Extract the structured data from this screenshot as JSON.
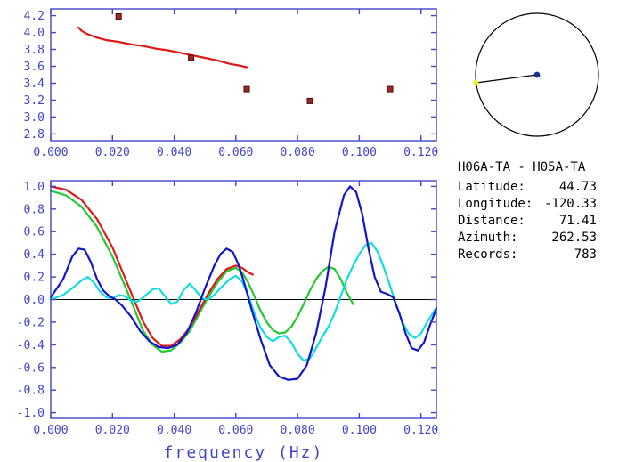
{
  "colors": {
    "axis": "#4343cc",
    "zero_line": "#000000",
    "red_curve": "#e01818",
    "blue_curve": "#1414cc",
    "green_curve": "#22c832",
    "cyan_curve": "#10dede",
    "marker": "#a02820",
    "marker_edge": "#4a0808",
    "circle_outline": "#000000",
    "center_dot": "#20308e",
    "end_dot": "#ecec20",
    "info_text": "#000000"
  },
  "station_info": {
    "title": "H06A-TA - H05A-TA",
    "fields": [
      {
        "label": "Latitude:",
        "value": "44.73"
      },
      {
        "label": "Longitude:",
        "value": "-120.33"
      },
      {
        "label": "Distance:",
        "value": "71.41"
      },
      {
        "label": "Azimuth:",
        "value": "262.53"
      },
      {
        "label": "Records:",
        "value": "783"
      }
    ]
  },
  "azimuth_plot": {
    "azimuth_deg": 262.53
  },
  "chart_data": [
    {
      "type": "line",
      "title": "",
      "xlabel": "",
      "ylabel": "",
      "xlim": [
        0,
        0.125
      ],
      "ylim": [
        2.72,
        4.28
      ],
      "grid": false,
      "legend": "none",
      "zero_line": false,
      "xticks": [
        {
          "v": 0.0,
          "label": "0.000"
        },
        {
          "v": 0.02,
          "label": "0.020"
        },
        {
          "v": 0.04,
          "label": "0.040"
        },
        {
          "v": 0.06,
          "label": "0.060"
        },
        {
          "v": 0.08,
          "label": "0.080"
        },
        {
          "v": 0.1,
          "label": "0.100"
        },
        {
          "v": 0.12,
          "label": "0.120"
        }
      ],
      "yticks": [
        {
          "v": 2.8,
          "label": "2.8"
        },
        {
          "v": 3.0,
          "label": "3.0"
        },
        {
          "v": 3.2,
          "label": "3.2"
        },
        {
          "v": 3.4,
          "label": "3.4"
        },
        {
          "v": 3.6,
          "label": "3.6"
        },
        {
          "v": 3.8,
          "label": "3.8"
        },
        {
          "v": 4.0,
          "label": "4.0"
        },
        {
          "v": 4.2,
          "label": "4.2"
        }
      ],
      "series": [
        {
          "name": "phase-velocity",
          "color": "red_curve",
          "points": [
            [
              0.009,
              4.06
            ],
            [
              0.01,
              4.02
            ],
            [
              0.012,
              3.98
            ],
            [
              0.015,
              3.94
            ],
            [
              0.018,
              3.91
            ],
            [
              0.022,
              3.89
            ],
            [
              0.026,
              3.86
            ],
            [
              0.03,
              3.84
            ],
            [
              0.034,
              3.81
            ],
            [
              0.038,
              3.79
            ],
            [
              0.042,
              3.76
            ],
            [
              0.046,
              3.73
            ],
            [
              0.05,
              3.7
            ],
            [
              0.054,
              3.67
            ],
            [
              0.058,
              3.63
            ],
            [
              0.061,
              3.61
            ],
            [
              0.0635,
              3.59
            ]
          ]
        }
      ],
      "markers": {
        "name": "picked-dispersion-points",
        "points": [
          [
            0.022,
            4.19
          ],
          [
            0.0455,
            3.7
          ],
          [
            0.0635,
            3.33
          ],
          [
            0.084,
            3.19
          ],
          [
            0.11,
            3.33
          ]
        ]
      }
    },
    {
      "type": "line",
      "title": "",
      "xlabel": "frequency (Hz)",
      "ylabel": "",
      "xlim": [
        0,
        0.125
      ],
      "ylim": [
        -1.05,
        1.05
      ],
      "grid": false,
      "legend": "none",
      "zero_line": true,
      "xticks": [
        {
          "v": 0.0,
          "label": "0.000"
        },
        {
          "v": 0.02,
          "label": "0.020"
        },
        {
          "v": 0.04,
          "label": "0.040"
        },
        {
          "v": 0.06,
          "label": "0.060"
        },
        {
          "v": 0.08,
          "label": "0.080"
        },
        {
          "v": 0.1,
          "label": "0.100"
        },
        {
          "v": 0.12,
          "label": "0.120"
        }
      ],
      "yticks": [
        {
          "v": 1.0,
          "label": "1.0"
        },
        {
          "v": 0.8,
          "label": "0.8"
        },
        {
          "v": 0.6,
          "label": "0.6"
        },
        {
          "v": 0.4,
          "label": "0.4"
        },
        {
          "v": 0.2,
          "label": "0.2"
        },
        {
          "v": 0.0,
          "label": "0.0"
        },
        {
          "v": -0.2,
          "label": "-0.2"
        },
        {
          "v": -0.4,
          "label": "-0.4"
        },
        {
          "v": -0.6,
          "label": "-0.6"
        },
        {
          "v": -0.8,
          "label": "-0.8"
        },
        {
          "v": -1.0,
          "label": "-1.0"
        }
      ],
      "series": [
        {
          "name": "green",
          "color": "green_curve",
          "points": [
            [
              0,
              0.96
            ],
            [
              0.005,
              0.92
            ],
            [
              0.01,
              0.82
            ],
            [
              0.015,
              0.64
            ],
            [
              0.02,
              0.38
            ],
            [
              0.025,
              0.06
            ],
            [
              0.03,
              -0.28
            ],
            [
              0.033,
              -0.4
            ],
            [
              0.036,
              -0.46
            ],
            [
              0.039,
              -0.45
            ],
            [
              0.042,
              -0.38
            ],
            [
              0.045,
              -0.28
            ],
            [
              0.048,
              -0.13
            ],
            [
              0.051,
              0.02
            ],
            [
              0.054,
              0.15
            ],
            [
              0.057,
              0.25
            ],
            [
              0.06,
              0.28
            ],
            [
              0.062,
              0.24
            ],
            [
              0.064,
              0.15
            ],
            [
              0.066,
              0.03
            ],
            [
              0.068,
              -0.1
            ],
            [
              0.07,
              -0.2
            ],
            [
              0.072,
              -0.27
            ],
            [
              0.074,
              -0.3
            ],
            [
              0.076,
              -0.29
            ],
            [
              0.078,
              -0.24
            ],
            [
              0.08,
              -0.15
            ],
            [
              0.082,
              -0.04
            ],
            [
              0.084,
              0.08
            ],
            [
              0.086,
              0.18
            ],
            [
              0.088,
              0.25
            ],
            [
              0.09,
              0.29
            ],
            [
              0.092,
              0.27
            ],
            [
              0.094,
              0.18
            ],
            [
              0.096,
              0.06
            ],
            [
              0.098,
              -0.04
            ]
          ]
        },
        {
          "name": "red",
          "color": "red_curve",
          "points": [
            [
              0,
              1.0
            ],
            [
              0.005,
              0.97
            ],
            [
              0.01,
              0.88
            ],
            [
              0.015,
              0.71
            ],
            [
              0.02,
              0.46
            ],
            [
              0.025,
              0.13
            ],
            [
              0.03,
              -0.2
            ],
            [
              0.033,
              -0.34
            ],
            [
              0.036,
              -0.41
            ],
            [
              0.039,
              -0.41
            ],
            [
              0.042,
              -0.35
            ],
            [
              0.045,
              -0.25
            ],
            [
              0.048,
              -0.1
            ],
            [
              0.051,
              0.05
            ],
            [
              0.054,
              0.18
            ],
            [
              0.057,
              0.27
            ],
            [
              0.06,
              0.3
            ],
            [
              0.062,
              0.28
            ],
            [
              0.064,
              0.24
            ],
            [
              0.0655,
              0.22
            ]
          ]
        },
        {
          "name": "cyan",
          "color": "cyan_curve",
          "points": [
            [
              0,
              0.0
            ],
            [
              0.004,
              0.04
            ],
            [
              0.007,
              0.1
            ],
            [
              0.01,
              0.17
            ],
            [
              0.012,
              0.2
            ],
            [
              0.014,
              0.15
            ],
            [
              0.016,
              0.07
            ],
            [
              0.018,
              0.02
            ],
            [
              0.02,
              0.01
            ],
            [
              0.022,
              0.04
            ],
            [
              0.024,
              0.03
            ],
            [
              0.026,
              -0.01
            ],
            [
              0.028,
              -0.02
            ],
            [
              0.03,
              0.02
            ],
            [
              0.033,
              0.09
            ],
            [
              0.035,
              0.1
            ],
            [
              0.037,
              0.03
            ],
            [
              0.039,
              -0.04
            ],
            [
              0.041,
              -0.02
            ],
            [
              0.043,
              0.08
            ],
            [
              0.045,
              0.14
            ],
            [
              0.047,
              0.08
            ],
            [
              0.049,
              0.01
            ],
            [
              0.051,
              0.0
            ],
            [
              0.053,
              0.04
            ],
            [
              0.055,
              0.1
            ],
            [
              0.058,
              0.18
            ],
            [
              0.06,
              0.21
            ],
            [
              0.062,
              0.16
            ],
            [
              0.064,
              0.04
            ],
            [
              0.066,
              -0.12
            ],
            [
              0.068,
              -0.25
            ],
            [
              0.07,
              -0.33
            ],
            [
              0.072,
              -0.37
            ],
            [
              0.074,
              -0.33
            ],
            [
              0.076,
              -0.32
            ],
            [
              0.078,
              -0.38
            ],
            [
              0.08,
              -0.48
            ],
            [
              0.082,
              -0.54
            ],
            [
              0.084,
              -0.52
            ],
            [
              0.086,
              -0.43
            ],
            [
              0.088,
              -0.33
            ],
            [
              0.09,
              -0.24
            ],
            [
              0.092,
              -0.12
            ],
            [
              0.094,
              0.03
            ],
            [
              0.096,
              0.18
            ],
            [
              0.098,
              0.3
            ],
            [
              0.1,
              0.4
            ],
            [
              0.102,
              0.48
            ],
            [
              0.104,
              0.5
            ],
            [
              0.106,
              0.42
            ],
            [
              0.108,
              0.28
            ],
            [
              0.11,
              0.12
            ],
            [
              0.112,
              -0.05
            ],
            [
              0.114,
              -0.2
            ],
            [
              0.116,
              -0.3
            ],
            [
              0.118,
              -0.34
            ],
            [
              0.12,
              -0.3
            ],
            [
              0.122,
              -0.2
            ],
            [
              0.125,
              -0.07
            ]
          ]
        },
        {
          "name": "blue",
          "color": "blue_curve",
          "points": [
            [
              0,
              0.02
            ],
            [
              0.004,
              0.18
            ],
            [
              0.007,
              0.38
            ],
            [
              0.009,
              0.45
            ],
            [
              0.011,
              0.44
            ],
            [
              0.013,
              0.33
            ],
            [
              0.015,
              0.18
            ],
            [
              0.017,
              0.08
            ],
            [
              0.019,
              0.03
            ],
            [
              0.021,
              0.0
            ],
            [
              0.023,
              -0.05
            ],
            [
              0.026,
              -0.15
            ],
            [
              0.029,
              -0.28
            ],
            [
              0.032,
              -0.37
            ],
            [
              0.035,
              -0.42
            ],
            [
              0.038,
              -0.43
            ],
            [
              0.041,
              -0.4
            ],
            [
              0.044,
              -0.3
            ],
            [
              0.047,
              -0.12
            ],
            [
              0.05,
              0.1
            ],
            [
              0.053,
              0.3
            ],
            [
              0.055,
              0.4
            ],
            [
              0.057,
              0.45
            ],
            [
              0.059,
              0.42
            ],
            [
              0.061,
              0.3
            ],
            [
              0.063,
              0.12
            ],
            [
              0.065,
              -0.08
            ],
            [
              0.068,
              -0.35
            ],
            [
              0.071,
              -0.58
            ],
            [
              0.074,
              -0.68
            ],
            [
              0.077,
              -0.71
            ],
            [
              0.08,
              -0.7
            ],
            [
              0.083,
              -0.58
            ],
            [
              0.086,
              -0.3
            ],
            [
              0.089,
              0.1
            ],
            [
              0.092,
              0.6
            ],
            [
              0.095,
              0.92
            ],
            [
              0.097,
              1.0
            ],
            [
              0.099,
              0.95
            ],
            [
              0.101,
              0.75
            ],
            [
              0.103,
              0.45
            ],
            [
              0.105,
              0.2
            ],
            [
              0.107,
              0.07
            ],
            [
              0.109,
              0.05
            ],
            [
              0.111,
              0.02
            ],
            [
              0.113,
              -0.12
            ],
            [
              0.115,
              -0.3
            ],
            [
              0.117,
              -0.43
            ],
            [
              0.119,
              -0.45
            ],
            [
              0.121,
              -0.38
            ],
            [
              0.123,
              -0.22
            ],
            [
              0.125,
              -0.08
            ]
          ]
        }
      ]
    }
  ]
}
